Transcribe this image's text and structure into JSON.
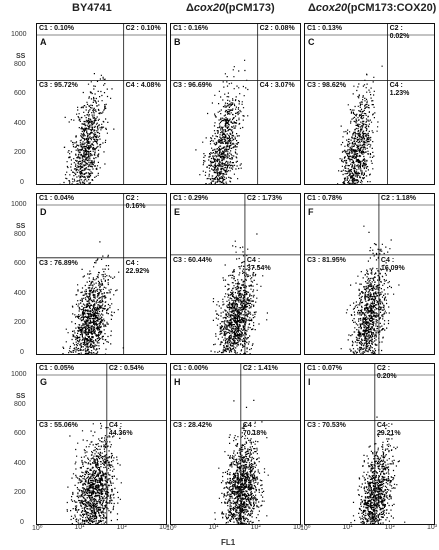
{
  "columns": [
    {
      "main": "BY4741",
      "italic": "",
      "suffix": ""
    },
    {
      "main": "Δ",
      "italic": "cox20",
      "suffix": "(pCM173)"
    },
    {
      "main": "Δ",
      "italic": "cox20",
      "suffix": "(pCM173:COX20)"
    }
  ],
  "ylabel": "SS",
  "xlabel": "FL1",
  "yticks": [
    "1000",
    "800",
    "600",
    "400",
    "200",
    "0"
  ],
  "xticks": [
    "10⁰",
    "10¹",
    "10²",
    "10³"
  ],
  "chart_data": {
    "type": "scatter",
    "xlabel": "FL1",
    "ylabel": "SS",
    "xscale": "log",
    "xlim": [
      1,
      1000
    ],
    "ylim": [
      0,
      1000
    ],
    "panels": [
      {
        "label": "A",
        "C1": "C1 : 0.10%",
        "C2": "C2 : 0.10%",
        "C3": "C3 : 95.72%",
        "C4": "C4 : 4.08%",
        "gate_x": 100,
        "gate_y": 700
      },
      {
        "label": "B",
        "C1": "C1 : 0.16%",
        "C2": "C2 : 0.08%",
        "C3": "C3 : 96.69%",
        "C4": "C4 : 3.07%",
        "gate_x": 100,
        "gate_y": 700
      },
      {
        "label": "C",
        "C1": "C1 : 0.13%",
        "C2": "C2 :\n0.02%",
        "C3": "C3 : 98.62%",
        "C4": "C4 :\n1.23%",
        "gate_x": 80,
        "gate_y": 700
      },
      {
        "label": "D",
        "C1": "C1 : 0.04%",
        "C2": "C2 :\n0.16%",
        "C3": "C3 : 76.89%",
        "C4": "C4 :\n22.92%",
        "gate_x": 100,
        "gate_y": 650
      },
      {
        "label": "E",
        "C1": "C1 : 0.29%",
        "C2": "C2 : 1.73%",
        "C3": "C3 : 60.44%",
        "C4": "C4 :\n37.54%",
        "gate_x": 50,
        "gate_y": 670
      },
      {
        "label": "F",
        "C1": "C1 : 0.78%",
        "C2": "C2 : 1.18%",
        "C3": "C3 : 81.95%",
        "C4": "C4 :\n16.09%",
        "gate_x": 50,
        "gate_y": 670
      },
      {
        "label": "G",
        "C1": "C1 : 0.05%",
        "C2": "C2 : 0.54%",
        "C3": "C3 : 55.06%",
        "C4": "C4 :\n44.36%",
        "gate_x": 40,
        "gate_y": 700
      },
      {
        "label": "H",
        "C1": "C1 : 0.00%",
        "C2": "C2 : 1.41%",
        "C3": "C3 : 28.42%",
        "C4": "C4 :\n70.18%",
        "gate_x": 40,
        "gate_y": 700
      },
      {
        "label": "I",
        "C1": "C1 : 0.07%",
        "C2": "C2 :\n0.20%",
        "C3": "C3 : 70.53%",
        "C4": "C4 :\n29.21%",
        "gate_x": 40,
        "gate_y": 700
      }
    ]
  }
}
